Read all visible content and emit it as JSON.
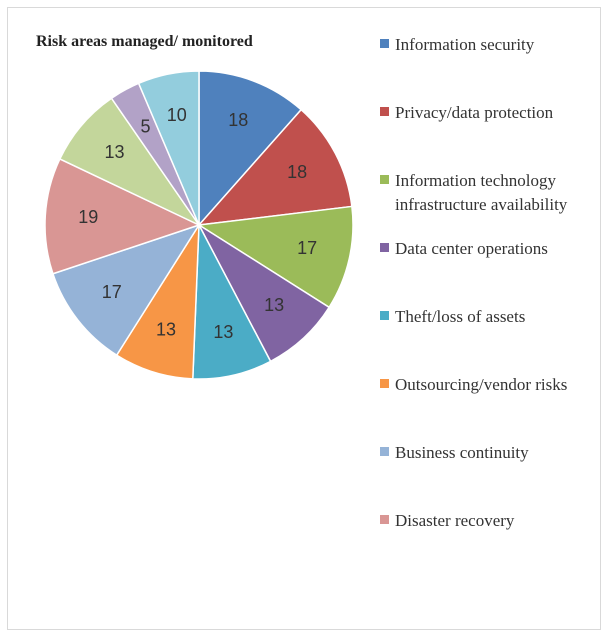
{
  "chart_data": {
    "type": "pie",
    "title": "Risk areas managed/ monitored",
    "categories": [
      "Information security",
      "Privacy/data protection",
      "Information technology infrastructure availability",
      "Data center operations",
      "Theft/loss of assets",
      "Outsourcing/vendor risks",
      "Business continuity",
      "Disaster recovery",
      null,
      null,
      null
    ],
    "values": [
      18,
      18,
      17,
      13,
      13,
      13,
      17,
      19,
      13,
      5,
      10
    ],
    "colors": [
      "#4f81bd",
      "#c0504d",
      "#9bbb59",
      "#8064a2",
      "#4bacc6",
      "#f79646",
      "#95b3d7",
      "#d99694",
      "#c3d69b",
      "#b2a2c7",
      "#93cddd"
    ],
    "legend": "right"
  }
}
